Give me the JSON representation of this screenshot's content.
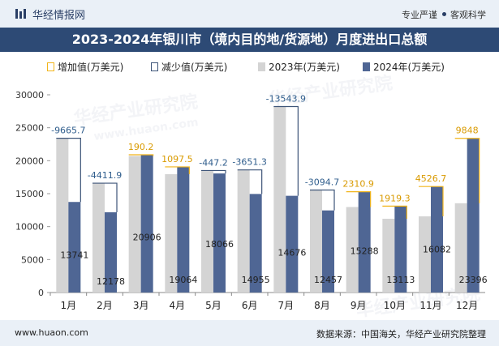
{
  "header": {
    "brand": "华经情报网",
    "tagline_left": "专业严谨",
    "tagline_right": "客观科学",
    "logo_icon": "huajing-logo-icon"
  },
  "footer": {
    "url": "www.huaon.com",
    "source": "数据来源：中国海关，华经产业研究院整理"
  },
  "watermark": {
    "text": "华经产业研究院",
    "url": "www.huaon.com"
  },
  "colors": {
    "bar_2023": "#d4d4d4",
    "bar_2024": "#4f6694",
    "increase": "#f2b51a",
    "decrease": "#3d5478",
    "increase_label": "#d99a00",
    "decrease_label": "#2f5d8c"
  },
  "chart_data": {
    "type": "bar",
    "title": "2023-2024年银川市（境内目的地/货源地）月度进出口总额",
    "categories": [
      "1月",
      "2月",
      "3月",
      "4月",
      "5月",
      "6月",
      "7月",
      "8月",
      "9月",
      "10月",
      "11月",
      "12月"
    ],
    "series": [
      {
        "name": "2023年(万美元)",
        "values": [
          23407,
          16590,
          20716,
          17966,
          18513,
          18606,
          28220,
          15552,
          12977,
          11194,
          11555,
          13548
        ]
      },
      {
        "name": "2024年(万美元)",
        "values": [
          13741,
          12178,
          20906,
          19064,
          18066,
          14955,
          14676,
          12457,
          15288,
          13113,
          16082,
          23396
        ]
      }
    ],
    "change_legend": [
      "增加值(万美元)",
      "减少值(万美元)"
    ],
    "changes": [
      -9665.7,
      -4411.9,
      190.2,
      1097.5,
      -447.2,
      -3651.3,
      -13543.9,
      -3094.7,
      2310.9,
      1919.3,
      4526.7,
      9848
    ],
    "change_labels": [
      "-9665.7",
      "-4411.9",
      "190.2",
      "1097.5",
      "-447.2",
      "-3651.3",
      "-13543.9",
      "-3094.7",
      "2310.9",
      "1919.3",
      "4526.7",
      "9848"
    ],
    "value_labels_2024": [
      "13741",
      "12178",
      "20906",
      "19064",
      "18066",
      "14955",
      "14676",
      "12457",
      "15288",
      "13113",
      "16082",
      "23396"
    ],
    "yticks": [
      "0",
      "5000",
      "10000",
      "15000",
      "20000",
      "25000",
      "30000"
    ],
    "ylim": [
      0,
      30000
    ],
    "xlabel": "",
    "ylabel": "",
    "legend_position": "top"
  }
}
